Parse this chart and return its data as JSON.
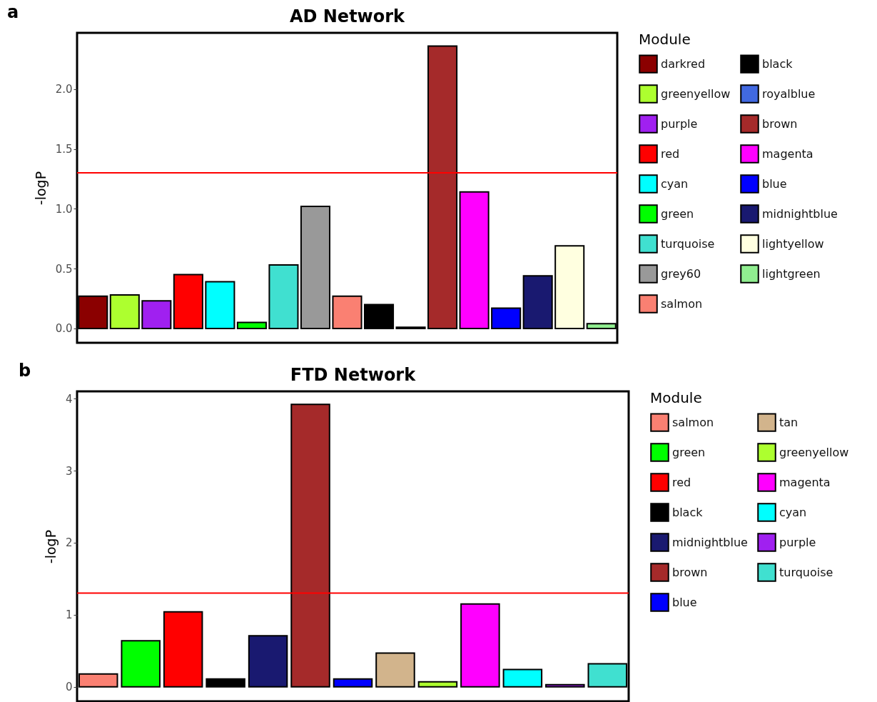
{
  "chart_data": [
    {
      "type": "bar",
      "stacked": true,
      "title": "AD Network",
      "ylabel": "-logP",
      "legend_title": "Module",
      "legend": "right",
      "tick_labels": "y",
      "annotations": [
        "a"
      ],
      "ylim": [
        -0.12,
        2.47
      ],
      "yticks": [
        {
          "value": 0,
          "label": "0.0"
        },
        0.5,
        {
          "value": 1,
          "label": "1.0"
        },
        1.5,
        {
          "value": 2,
          "label": "2.0"
        }
      ],
      "ref_lines": [
        {
          "axis": "y",
          "value": 1.3,
          "color": "#ff0000"
        }
      ],
      "categories": [
        null,
        null,
        null,
        null,
        null,
        null,
        null,
        null,
        null,
        null,
        null,
        null,
        null,
        null,
        null,
        null,
        null
      ],
      "series": [
        {
          "name": "darkred",
          "color": "#8b0000",
          "values": [
            0.27,
            null,
            null,
            null,
            null,
            null,
            null,
            null,
            null,
            null,
            null,
            null,
            null,
            null,
            null,
            null,
            null
          ]
        },
        {
          "name": "greenyellow",
          "color": "#adff2f",
          "values": [
            null,
            0.28,
            null,
            null,
            null,
            null,
            null,
            null,
            null,
            null,
            null,
            null,
            null,
            null,
            null,
            null,
            null
          ]
        },
        {
          "name": "purple",
          "color": "#a020f0",
          "values": [
            null,
            null,
            0.23,
            null,
            null,
            null,
            null,
            null,
            null,
            null,
            null,
            null,
            null,
            null,
            null,
            null,
            null
          ]
        },
        {
          "name": "red",
          "color": "#ff0000",
          "values": [
            null,
            null,
            null,
            0.45,
            null,
            null,
            null,
            null,
            null,
            null,
            null,
            null,
            null,
            null,
            null,
            null,
            null
          ]
        },
        {
          "name": "cyan",
          "color": "#00ffff",
          "values": [
            null,
            null,
            null,
            null,
            0.39,
            null,
            null,
            null,
            null,
            null,
            null,
            null,
            null,
            null,
            null,
            null,
            null
          ]
        },
        {
          "name": "green",
          "color": "#00ff00",
          "values": [
            null,
            null,
            null,
            null,
            null,
            0.05,
            null,
            null,
            null,
            null,
            null,
            null,
            null,
            null,
            null,
            null,
            null
          ]
        },
        {
          "name": "turquoise",
          "color": "#40e0d0",
          "values": [
            null,
            null,
            null,
            null,
            null,
            null,
            0.53,
            null,
            null,
            null,
            null,
            null,
            null,
            null,
            null,
            null,
            null
          ]
        },
        {
          "name": "grey60",
          "color": "#999999",
          "values": [
            null,
            null,
            null,
            null,
            null,
            null,
            null,
            1.02,
            null,
            null,
            null,
            null,
            null,
            null,
            null,
            null,
            null
          ]
        },
        {
          "name": "salmon",
          "color": "#fa8072",
          "values": [
            null,
            null,
            null,
            null,
            null,
            null,
            null,
            null,
            0.27,
            null,
            null,
            null,
            null,
            null,
            null,
            null,
            null
          ]
        },
        {
          "name": "black",
          "color": "#000000",
          "values": [
            null,
            null,
            null,
            null,
            null,
            null,
            null,
            null,
            null,
            0.2,
            null,
            null,
            null,
            null,
            null,
            null,
            null
          ]
        },
        {
          "name": "royalblue",
          "color": "#4169e1",
          "values": [
            null,
            null,
            null,
            null,
            null,
            null,
            null,
            null,
            null,
            null,
            0.01,
            null,
            null,
            null,
            null,
            null,
            null
          ]
        },
        {
          "name": "brown",
          "color": "#a52a2a",
          "values": [
            null,
            null,
            null,
            null,
            null,
            null,
            null,
            null,
            null,
            null,
            null,
            2.36,
            null,
            null,
            null,
            null,
            null
          ]
        },
        {
          "name": "magenta",
          "color": "#ff00ff",
          "values": [
            null,
            null,
            null,
            null,
            null,
            null,
            null,
            null,
            null,
            null,
            null,
            null,
            1.14,
            null,
            null,
            null,
            null
          ]
        },
        {
          "name": "blue",
          "color": "#0000ff",
          "values": [
            null,
            null,
            null,
            null,
            null,
            null,
            null,
            null,
            null,
            null,
            null,
            null,
            null,
            0.17,
            null,
            null,
            null
          ]
        },
        {
          "name": "midnightblue",
          "color": "#191970",
          "values": [
            null,
            null,
            null,
            null,
            null,
            null,
            null,
            null,
            null,
            null,
            null,
            null,
            null,
            null,
            0.44,
            null,
            null
          ]
        },
        {
          "name": "lightyellow",
          "color": "#ffffe0",
          "values": [
            null,
            null,
            null,
            null,
            null,
            null,
            null,
            null,
            null,
            null,
            null,
            null,
            null,
            null,
            null,
            0.69,
            null
          ]
        },
        {
          "name": "lightgreen",
          "color": "#90ee90",
          "values": [
            null,
            null,
            null,
            null,
            null,
            null,
            null,
            null,
            null,
            null,
            null,
            null,
            null,
            null,
            null,
            null,
            0.04
          ]
        }
      ]
    },
    {
      "type": "bar",
      "stacked": true,
      "title": "FTD Network",
      "ylabel": "-logP",
      "legend_title": "Module",
      "legend": "right",
      "tick_labels": "y",
      "annotations": [
        "b"
      ],
      "ylim": [
        -0.2,
        4.1
      ],
      "yticks": [
        0,
        1,
        2,
        3,
        4
      ],
      "ref_lines": [
        {
          "axis": "y",
          "value": 1.3,
          "color": "#ff0000"
        }
      ],
      "categories": [
        null,
        null,
        null,
        null,
        null,
        null,
        null,
        null,
        null,
        null,
        null,
        null,
        null
      ],
      "series": [
        {
          "name": "salmon",
          "color": "#fa8072",
          "values": [
            0.18,
            null,
            null,
            null,
            null,
            null,
            null,
            null,
            null,
            null,
            null,
            null,
            null
          ]
        },
        {
          "name": "green",
          "color": "#00ff00",
          "values": [
            null,
            0.64,
            null,
            null,
            null,
            null,
            null,
            null,
            null,
            null,
            null,
            null,
            null
          ]
        },
        {
          "name": "red",
          "color": "#ff0000",
          "values": [
            null,
            null,
            1.04,
            null,
            null,
            null,
            null,
            null,
            null,
            null,
            null,
            null,
            null
          ]
        },
        {
          "name": "black",
          "color": "#000000",
          "values": [
            null,
            null,
            null,
            0.11,
            null,
            null,
            null,
            null,
            null,
            null,
            null,
            null,
            null
          ]
        },
        {
          "name": "midnightblue",
          "color": "#191970",
          "values": [
            null,
            null,
            null,
            null,
            0.71,
            null,
            null,
            null,
            null,
            null,
            null,
            null,
            null
          ]
        },
        {
          "name": "brown",
          "color": "#a52a2a",
          "values": [
            null,
            null,
            null,
            null,
            null,
            3.92,
            null,
            null,
            null,
            null,
            null,
            null,
            null
          ]
        },
        {
          "name": "blue",
          "color": "#0000ff",
          "values": [
            null,
            null,
            null,
            null,
            null,
            null,
            0.11,
            null,
            null,
            null,
            null,
            null,
            null
          ]
        },
        {
          "name": "tan",
          "color": "#d2b48c",
          "values": [
            null,
            null,
            null,
            null,
            null,
            null,
            null,
            0.47,
            null,
            null,
            null,
            null,
            null
          ]
        },
        {
          "name": "greenyellow",
          "color": "#adff2f",
          "values": [
            null,
            null,
            null,
            null,
            null,
            null,
            null,
            null,
            0.07,
            null,
            null,
            null,
            null
          ]
        },
        {
          "name": "magenta",
          "color": "#ff00ff",
          "values": [
            null,
            null,
            null,
            null,
            null,
            null,
            null,
            null,
            null,
            1.15,
            null,
            null,
            null
          ]
        },
        {
          "name": "cyan",
          "color": "#00ffff",
          "values": [
            null,
            null,
            null,
            null,
            null,
            null,
            null,
            null,
            null,
            null,
            0.24,
            null,
            null
          ]
        },
        {
          "name": "purple",
          "color": "#a020f0",
          "values": [
            null,
            null,
            null,
            null,
            null,
            null,
            null,
            null,
            null,
            null,
            null,
            0.03,
            null
          ]
        },
        {
          "name": "turquoise",
          "color": "#40e0d0",
          "values": [
            null,
            null,
            null,
            null,
            null,
            null,
            null,
            null,
            null,
            null,
            null,
            null,
            0.32
          ]
        }
      ]
    }
  ]
}
